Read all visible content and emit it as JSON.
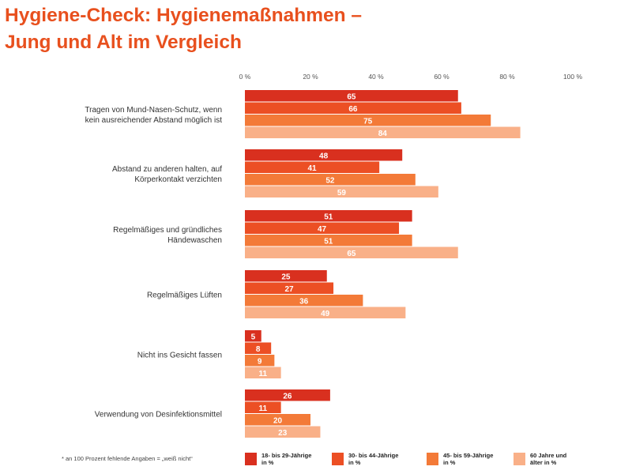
{
  "title_line1": "Hygiene-Check: Hygienemaßnahmen –",
  "title_line2": "Jung und Alt im Vergleich",
  "footnote": "* an 100 Prozent fehlende Angaben = „weiß nicht“",
  "colors": {
    "title": "#e8501e",
    "series": [
      "#d9301f",
      "#ec4f24",
      "#f37a38",
      "#f9b088"
    ]
  },
  "chart_data": {
    "type": "bar",
    "orientation": "horizontal",
    "xlim": [
      0,
      100
    ],
    "ticks": [
      "0 %",
      "20 %",
      "40 %",
      "60 %",
      "80 %",
      "100 %"
    ],
    "tick_values": [
      0,
      20,
      40,
      60,
      80,
      100
    ],
    "categories": [
      [
        "Tragen von Mund-Nasen-Schutz, wenn",
        "kein ausreichender Abstand möglich ist"
      ],
      [
        "Abstand zu anderen halten, auf",
        "Körperkontakt verzichten"
      ],
      [
        "Regelmäßiges und gründliches",
        "Händewaschen"
      ],
      [
        "Regelmäßiges Lüften"
      ],
      [
        "Nicht ins Gesicht fassen"
      ],
      [
        "Verwendung von Desinfektionsmittel"
      ]
    ],
    "series": [
      {
        "name": "18- bis 29-Jährige in %",
        "values": [
          65,
          48,
          51,
          25,
          5,
          26
        ]
      },
      {
        "name": "30- bis 44-Jährige in %",
        "values": [
          66,
          41,
          47,
          27,
          8,
          11
        ]
      },
      {
        "name": "45- bis 59-Jährige in %",
        "values": [
          75,
          52,
          51,
          36,
          9,
          20
        ]
      },
      {
        "name": "60 Jahre und älter in %",
        "values": [
          84,
          59,
          65,
          49,
          11,
          23
        ]
      }
    ]
  },
  "legend": [
    [
      "18- bis 29-Jährige",
      "in %"
    ],
    [
      "30- bis 44-Jährige",
      "in %"
    ],
    [
      "45- bis 59-Jährige",
      "in %"
    ],
    [
      "60 Jahre und",
      "älter in %"
    ]
  ]
}
